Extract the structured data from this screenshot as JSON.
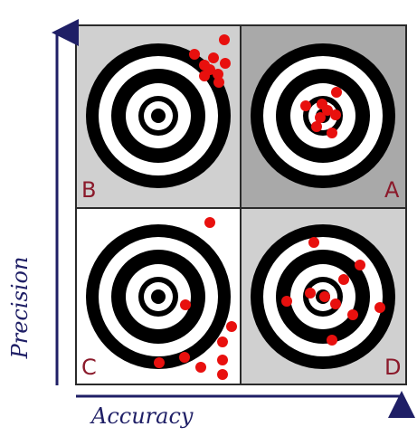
{
  "axes": {
    "y_label": "Precision",
    "x_label": "Accuracy",
    "axis_color": "#1f1f66"
  },
  "quadrants": [
    {
      "label": "B",
      "background": "#d0d0d0"
    },
    {
      "label": "A",
      "background": "#a9a9a9"
    },
    {
      "label": "C",
      "background": "#ffffff"
    },
    {
      "label": "D",
      "background": "#d0d0d0"
    }
  ],
  "colors": {
    "ring_dark": "#000000",
    "ring_light": "#ffffff",
    "dot": "#e8100e",
    "label": "#8b1a2b"
  }
}
